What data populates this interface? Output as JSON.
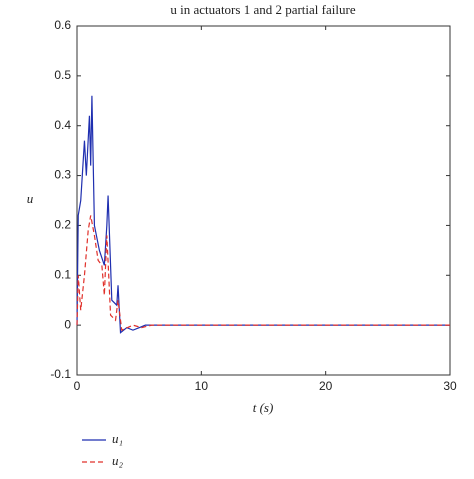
{
  "chart_data": {
    "type": "line",
    "title": "u in actuators 1 and 2 partial failure",
    "x_label": "t (s)",
    "y_label": "u",
    "xlim": [
      0,
      30
    ],
    "ylim": [
      -0.1,
      0.6
    ],
    "xticks": [
      0,
      10,
      20,
      30
    ],
    "yticks": [
      -0.1,
      0,
      0.1,
      0.2,
      0.3,
      0.4,
      0.5,
      0.6
    ],
    "series": [
      {
        "name": "u₁",
        "color": "#1f2fb0",
        "dash": "none",
        "x": [
          0,
          0.1,
          0.3,
          0.6,
          0.75,
          1.0,
          1.1,
          1.2,
          1.4,
          1.8,
          2.2,
          2.4,
          2.5,
          2.8,
          3.2,
          3.3,
          3.5,
          4.0,
          4.5,
          5.0,
          5.5,
          6.0,
          30
        ],
        "values": [
          0,
          0.22,
          0.25,
          0.37,
          0.3,
          0.42,
          0.32,
          0.46,
          0.2,
          0.15,
          0.12,
          0.2,
          0.26,
          0.05,
          0.04,
          0.08,
          -0.015,
          -0.005,
          -0.01,
          -0.005,
          0,
          0,
          0
        ]
      },
      {
        "name": "u₂",
        "color": "#e0302a",
        "dash": "5,3",
        "x": [
          0,
          0.1,
          0.3,
          0.6,
          0.9,
          1.1,
          1.4,
          1.7,
          2.0,
          2.2,
          2.4,
          2.7,
          3.1,
          3.3,
          3.6,
          4.5,
          5.2,
          6.0,
          30
        ],
        "values": [
          0,
          0.1,
          0.03,
          0.1,
          0.19,
          0.22,
          0.18,
          0.13,
          0.12,
          0.06,
          0.18,
          0.02,
          0.01,
          0.05,
          -0.01,
          0,
          -0.005,
          0,
          0
        ]
      }
    ]
  }
}
